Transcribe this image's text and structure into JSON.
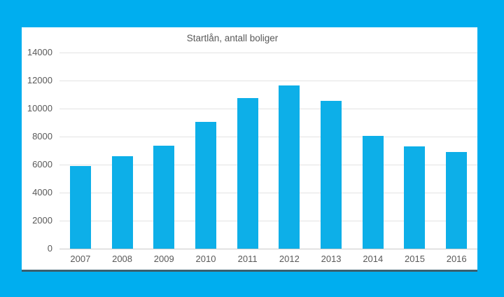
{
  "chart_data": {
    "type": "bar",
    "title": "Startlån, antall boliger",
    "categories": [
      "2007",
      "2008",
      "2009",
      "2010",
      "2011",
      "2012",
      "2013",
      "2014",
      "2015",
      "2016"
    ],
    "values": [
      5900,
      6600,
      7350,
      9050,
      10750,
      11650,
      10550,
      8050,
      7300,
      6900
    ],
    "xlabel": "",
    "ylabel": "",
    "ylim": [
      0,
      14000
    ],
    "yticks": [
      0,
      2000,
      4000,
      6000,
      8000,
      10000,
      12000,
      14000
    ],
    "grid": true,
    "legend": "none",
    "colors": {
      "background": "#00AEEF",
      "panel": "#FFFFFF",
      "bar": "#0DAFE8",
      "gridline": "#E3E3E3",
      "axis_line": "#C9C9C9",
      "text": "#595959",
      "panel_border_bottom": "#3C5F6E"
    }
  }
}
